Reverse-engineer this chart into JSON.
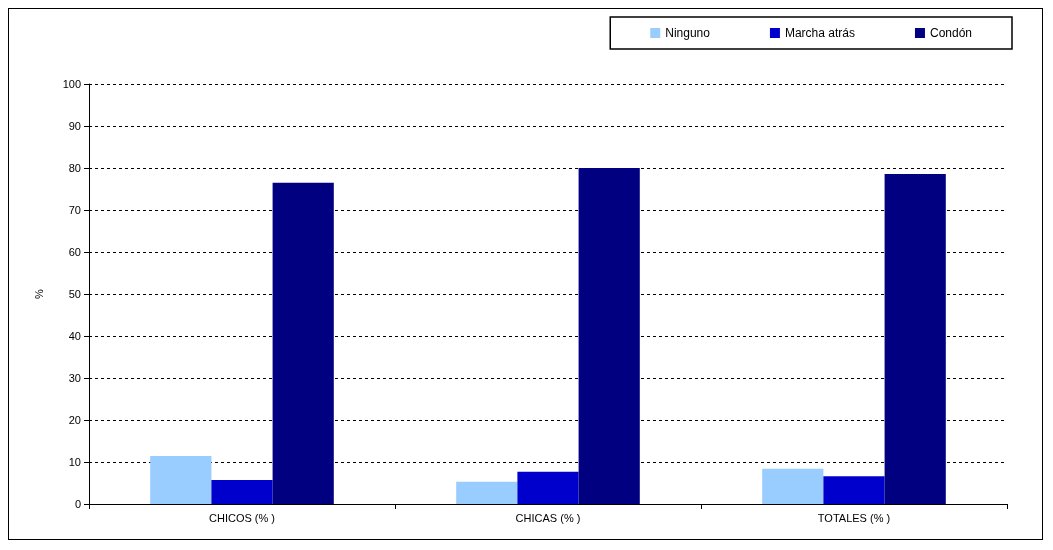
{
  "chart_data": {
    "type": "bar",
    "ylabel": "%",
    "categories": [
      "CHICOS (% )",
      "CHICAS (% )",
      "TOTALES (% )"
    ],
    "series": [
      {
        "name": "Ninguno",
        "color": "#99ccff",
        "values": [
          11.4,
          5.3,
          8.4
        ]
      },
      {
        "name": "Marcha atrás",
        "color": "#0000cc",
        "values": [
          5.7,
          7.7,
          6.6
        ]
      },
      {
        "name": "Condón",
        "color": "#000080",
        "values": [
          76.5,
          80,
          78.6
        ]
      }
    ],
    "ylim": [
      0,
      100
    ],
    "yticks": [
      0,
      10,
      20,
      30,
      40,
      50,
      60,
      70,
      80,
      90,
      100
    ],
    "grid": "y",
    "legend": "top right"
  }
}
